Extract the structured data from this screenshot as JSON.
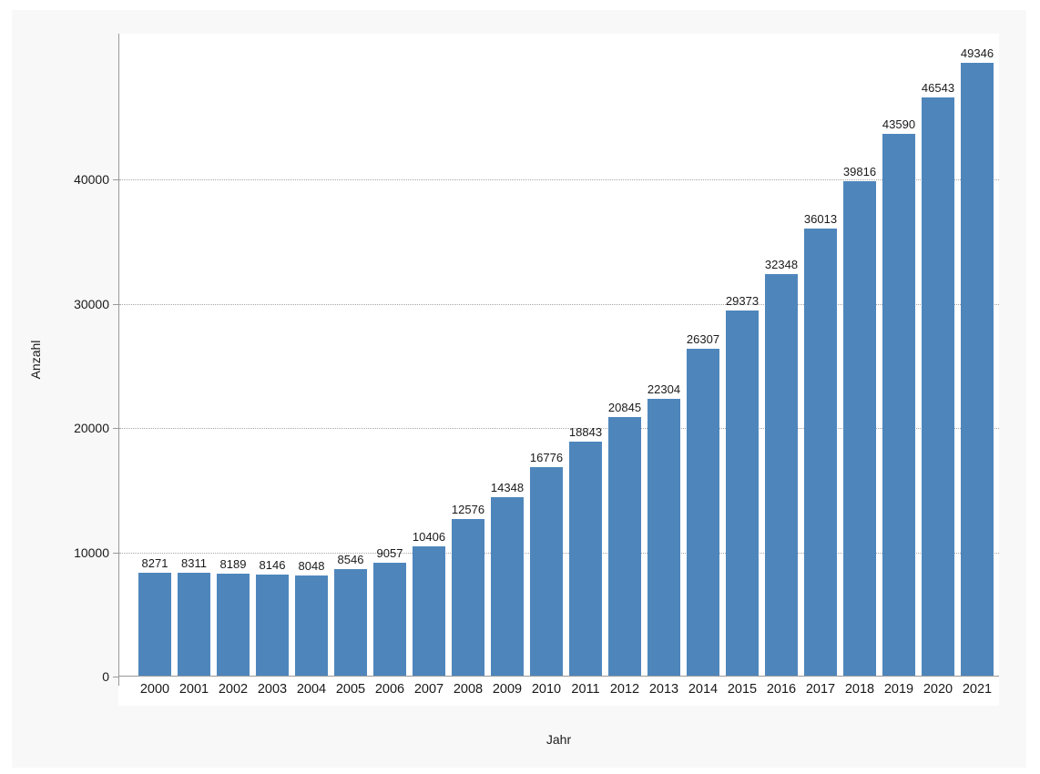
{
  "chart_data": {
    "type": "bar",
    "title": "",
    "xlabel": "Jahr",
    "ylabel": "Anzahl",
    "categories": [
      "2000",
      "2001",
      "2002",
      "2003",
      "2004",
      "2005",
      "2006",
      "2007",
      "2008",
      "2009",
      "2010",
      "2011",
      "2012",
      "2013",
      "2014",
      "2015",
      "2016",
      "2017",
      "2018",
      "2019",
      "2020",
      "2021"
    ],
    "values": [
      8271,
      8311,
      8189,
      8146,
      8048,
      8546,
      9057,
      10406,
      12576,
      14348,
      16776,
      18843,
      20845,
      22304,
      26307,
      29373,
      32348,
      36013,
      39816,
      43590,
      46543,
      49346
    ],
    "ylim": [
      0,
      51750
    ],
    "yticks": [
      0,
      10000,
      20000,
      30000,
      40000
    ],
    "value_labels": true,
    "legend": "none",
    "grid": "horizontal-dotted",
    "colors": {
      "bar": "#4e86bc",
      "axis": "#999999",
      "gridline": "#a6a6a6",
      "text": "#1a1a1a",
      "panel_background": "#f8f8f8",
      "plot_background": "#ffffff"
    }
  }
}
